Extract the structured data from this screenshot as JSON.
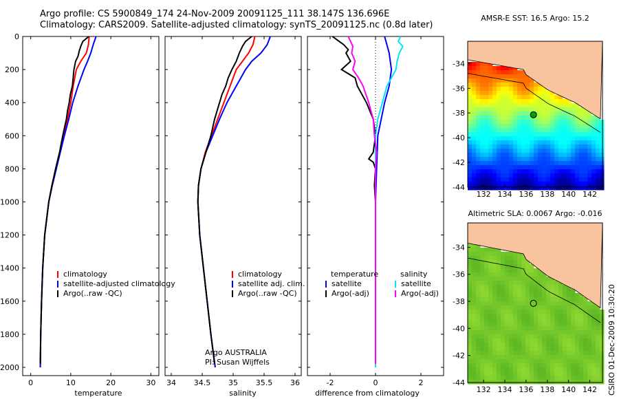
{
  "header": {
    "line1": "Argo profile: CS 5900849_174 24-Nov-2009 20091125_111 38.147S 136.696E",
    "line2": "Climatology: CARS2009. Satellite-adjusted climatology: synTS_20091125.nc (0.8d later)"
  },
  "credit": "CSIRO 01-Dec-2009 10:30:20",
  "colors": {
    "climatology": "#ff0000",
    "satellite": "#0000ff",
    "argo": "#000000",
    "salinity_sat": "#00e5ff",
    "salinity_argo": "#ff00ff",
    "land": "#f9c49d"
  },
  "chart_data": [
    {
      "type": "line",
      "xlabel": "temperature",
      "ylabel": "",
      "xlim": [
        -2,
        32
      ],
      "ylim": [
        2050,
        0
      ],
      "xticks": [
        "0",
        "10",
        "20",
        "30"
      ],
      "yticks": [
        "0",
        "200",
        "400",
        "600",
        "800",
        "1000",
        "1200",
        "1400",
        "1600",
        "1800",
        "2000"
      ],
      "legend": [
        "climatology",
        "satellite-adjusted climatology",
        "Argo(..raw -QC)"
      ],
      "series": [
        {
          "name": "climatology",
          "color": "#ff0000",
          "depth": [
            0,
            50,
            100,
            150,
            200,
            300,
            400,
            500,
            600,
            700,
            800,
            900,
            1000,
            1200,
            1400,
            1600,
            1800,
            2000
          ],
          "values": [
            14.6,
            14.4,
            13.9,
            12.5,
            11.4,
            10.6,
            10.0,
            9.2,
            8.3,
            7.3,
            6.3,
            5.3,
            4.5,
            3.5,
            3.0,
            2.7,
            2.5,
            2.4
          ]
        },
        {
          "name": "satellite-adjusted climatology",
          "color": "#0000ff",
          "depth": [
            0,
            50,
            100,
            150,
            200,
            300,
            400,
            500,
            600,
            700,
            800,
            900,
            1000,
            1200,
            1400,
            1600,
            1800,
            2000
          ],
          "values": [
            16.3,
            15.6,
            15.0,
            14.2,
            13.3,
            11.8,
            10.5,
            9.5,
            8.4,
            7.4,
            6.4,
            5.4,
            4.5,
            3.5,
            3.0,
            2.7,
            2.5,
            2.4
          ]
        },
        {
          "name": "Argo(..raw -QC)",
          "color": "#000000",
          "depth": [
            0,
            30,
            60,
            90,
            120,
            150,
            200,
            250,
            300,
            350,
            400,
            450,
            500,
            600,
            700,
            800,
            900,
            1000,
            1200,
            1400,
            1600,
            1800,
            1980
          ],
          "values": [
            14.5,
            13.0,
            12.5,
            12.1,
            11.8,
            11.2,
            10.8,
            10.6,
            10.4,
            9.9,
            9.6,
            9.2,
            8.9,
            8.0,
            7.2,
            6.2,
            5.3,
            4.5,
            3.5,
            3.0,
            2.7,
            2.5,
            2.4
          ]
        }
      ]
    },
    {
      "type": "line",
      "xlabel": "salinity",
      "ylabel": "",
      "xlim": [
        33.9,
        36.1
      ],
      "ylim": [
        2050,
        0
      ],
      "xticks": [
        "34",
        "34.5",
        "35",
        "35.5",
        "36"
      ],
      "legend": [
        "climatology",
        "satellite adj. clim.",
        "Argo(..raw -QC)"
      ],
      "annotation": [
        "Argo AUSTRALIA",
        "PI: Susan Wijffels"
      ],
      "series": [
        {
          "name": "climatology",
          "color": "#ff0000",
          "depth": [
            0,
            50,
            100,
            150,
            200,
            300,
            400,
            500,
            600,
            700,
            800,
            900,
            1000,
            1200,
            1400,
            1600,
            1800,
            2000
          ],
          "values": [
            35.35,
            35.32,
            35.25,
            35.15,
            35.05,
            34.95,
            34.85,
            34.75,
            34.65,
            34.55,
            34.48,
            34.44,
            34.43,
            34.46,
            34.52,
            34.58,
            34.64,
            34.71
          ]
        },
        {
          "name": "satellite adj. clim.",
          "color": "#0000ff",
          "depth": [
            0,
            50,
            100,
            150,
            200,
            300,
            400,
            500,
            600,
            700,
            800,
            900,
            1000,
            1200,
            1400,
            1600,
            1800,
            2000
          ],
          "values": [
            35.6,
            35.55,
            35.45,
            35.3,
            35.2,
            35.05,
            34.9,
            34.78,
            34.67,
            34.56,
            34.48,
            34.44,
            34.43,
            34.46,
            34.52,
            34.58,
            34.64,
            34.71
          ]
        },
        {
          "name": "Argo(..raw -QC)",
          "color": "#000000",
          "depth": [
            0,
            30,
            60,
            100,
            150,
            200,
            250,
            300,
            350,
            400,
            450,
            500,
            600,
            700,
            800,
            900,
            1000,
            1200,
            1400,
            1600,
            1800,
            1980
          ],
          "values": [
            35.3,
            35.2,
            35.15,
            35.1,
            35.05,
            34.98,
            34.92,
            34.88,
            34.82,
            34.78,
            34.74,
            34.7,
            34.64,
            34.56,
            34.48,
            34.44,
            34.43,
            34.46,
            34.52,
            34.58,
            34.64,
            34.7
          ]
        }
      ]
    },
    {
      "type": "line",
      "xlabel": "difference from climatology",
      "ylabel": "",
      "xlim": [
        -3,
        3
      ],
      "ylim": [
        2050,
        0
      ],
      "xticks": [
        "-2",
        "0",
        "2"
      ],
      "legend_temperature": [
        "temperature",
        "satellite",
        "Argo(-adj)"
      ],
      "legend_salinity": [
        "salinity",
        "satellite",
        "Argo(-adj)"
      ],
      "series": [
        {
          "name": "satellite",
          "group": "temperature",
          "color": "#0000ff",
          "depth": [
            0,
            50,
            100,
            200,
            300,
            400,
            600,
            800,
            1000,
            1500,
            2000
          ],
          "values": [
            0.4,
            0.5,
            0.6,
            0.7,
            0.6,
            0.4,
            0.1,
            0.05,
            0.0,
            0.0,
            0.0
          ]
        },
        {
          "name": "Argo(-adj)",
          "group": "temperature",
          "color": "#000000",
          "depth": [
            0,
            30,
            50,
            80,
            100,
            150,
            200,
            250,
            300,
            400,
            500,
            600,
            700,
            720,
            740,
            760,
            800,
            900,
            1000,
            1500,
            1980
          ],
          "values": [
            -1.9,
            -1.6,
            -1.4,
            -1.2,
            -1.3,
            -1.1,
            -1.5,
            -0.9,
            -0.8,
            -0.4,
            -0.1,
            0.0,
            -0.1,
            -0.2,
            -0.3,
            -0.1,
            0.0,
            -0.05,
            0.0,
            0.0,
            0.0
          ]
        },
        {
          "name": "satellite",
          "group": "salinity",
          "color": "#00e5ff",
          "depth": [
            0,
            30,
            60,
            100,
            150,
            200,
            250,
            300,
            400,
            500,
            600,
            800,
            1000,
            1500,
            2000
          ],
          "values": [
            1.1,
            1.0,
            1.2,
            1.05,
            0.95,
            0.9,
            0.7,
            0.5,
            0.3,
            0.1,
            0.0,
            0.0,
            0.0,
            0.0,
            0.0
          ]
        },
        {
          "name": "Argo(-adj)",
          "group": "salinity",
          "color": "#ff00ff",
          "depth": [
            0,
            30,
            60,
            100,
            150,
            200,
            250,
            300,
            400,
            500,
            600,
            700,
            800,
            1000,
            1500,
            1980
          ],
          "values": [
            -1.2,
            -1.1,
            -1.0,
            -1.05,
            -0.9,
            -1.0,
            -0.75,
            -0.55,
            -0.3,
            -0.1,
            -0.05,
            0.05,
            0.0,
            0.0,
            0.0,
            0.0
          ]
        },
        {
          "name": "zero line",
          "group": "reference",
          "color": "#000000",
          "depth": [
            0,
            600
          ],
          "values": [
            0,
            0
          ]
        }
      ]
    },
    {
      "type": "heatmap",
      "title": "AMSR-E SST: 16.5 Argo: 15.2",
      "xlim": [
        130.5,
        143.2
      ],
      "ylim": [
        -44,
        -32.2
      ],
      "xticks": [
        "132",
        "134",
        "136",
        "138",
        "140",
        "142"
      ],
      "yticks": [
        "-34",
        "-36",
        "-38",
        "-40",
        "-42",
        "-44"
      ],
      "colormap": "jet",
      "marker": {
        "lon": 136.696,
        "lat": -38.147,
        "color": "#00a000"
      }
    },
    {
      "type": "heatmap",
      "title": "Altimetric SLA: 0.0067 Argo: -0.016",
      "xlim": [
        130.5,
        143.2
      ],
      "ylim": [
        -44,
        -32.2
      ],
      "xticks": [
        "132",
        "134",
        "136",
        "138",
        "140",
        "142"
      ],
      "yticks": [
        "-34",
        "-36",
        "-38",
        "-40",
        "-42",
        "-44"
      ],
      "colormap": "green",
      "marker": {
        "lon": 136.696,
        "lat": -38.147,
        "color": "#00a000"
      }
    }
  ]
}
